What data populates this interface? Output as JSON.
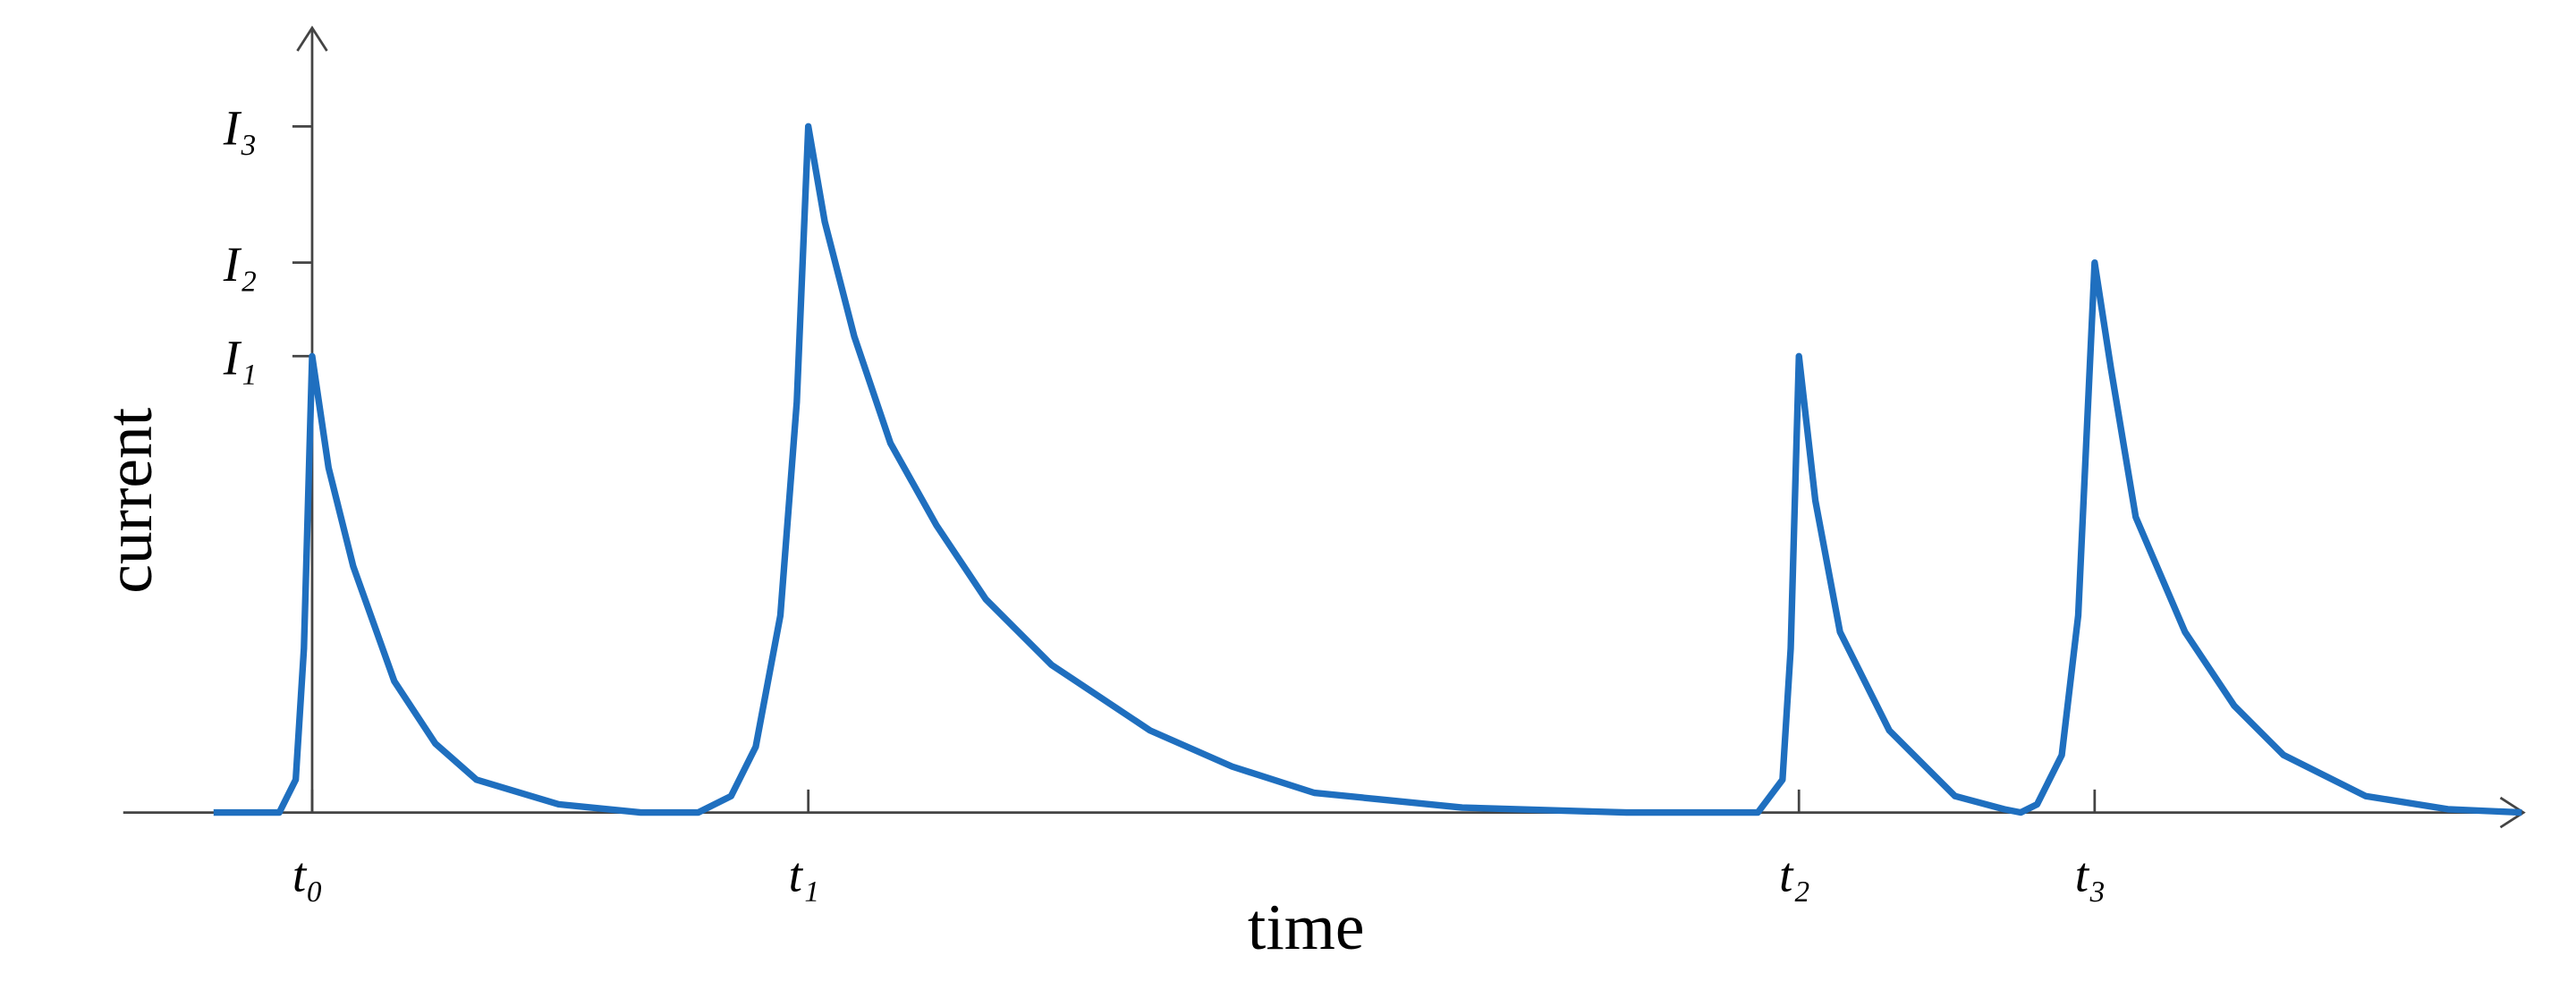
{
  "chart_data": {
    "type": "line",
    "x_label": "time",
    "y_label": "current",
    "xlim": [
      -115,
      1345
    ],
    "ylim": [
      0,
      477
    ],
    "xticks": [
      {
        "value": 0,
        "label": "t₀"
      },
      {
        "value": 302,
        "label": "t₁"
      },
      {
        "value": 905,
        "label": "t₂"
      },
      {
        "value": 1085,
        "label": "t₃"
      }
    ],
    "yticks": [
      {
        "value": 278,
        "label": "I₁"
      },
      {
        "value": 335,
        "label": "I₂"
      },
      {
        "value": 418,
        "label": "I₃"
      }
    ],
    "x": [
      -60,
      -20,
      -10,
      -5,
      0,
      10,
      25,
      50,
      75,
      100,
      150,
      200,
      235,
      255,
      270,
      285,
      295,
      302,
      312,
      330,
      352,
      380,
      410,
      450,
      510,
      560,
      610,
      700,
      800,
      880,
      895,
      900,
      905,
      915,
      930,
      960,
      1000,
      1030,
      1040,
      1050,
      1065,
      1075,
      1085,
      1095,
      1110,
      1140,
      1170,
      1200,
      1250,
      1300,
      1345
    ],
    "series": [
      {
        "color": "#1f6fbf",
        "values": [
          0,
          0,
          20,
          100,
          278,
          210,
          150,
          80,
          42,
          20,
          5,
          0,
          0,
          10,
          40,
          120,
          250,
          418,
          360,
          290,
          225,
          175,
          130,
          90,
          50,
          28,
          12,
          3,
          0,
          0,
          20,
          100,
          278,
          190,
          110,
          50,
          10,
          2,
          0,
          5,
          35,
          120,
          335,
          270,
          180,
          110,
          65,
          35,
          10,
          2,
          0
        ]
      }
    ]
  }
}
